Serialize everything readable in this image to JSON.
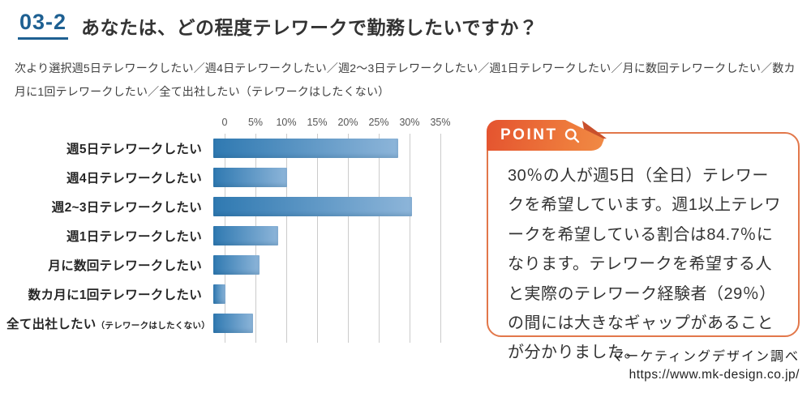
{
  "header": {
    "number": "03-2",
    "title": "あなたは、どの程度テレワークで勤務したいですか？"
  },
  "subtitle": "次より選択週5日テレワークしたい／週4日テレワークしたい／週2～3日テレワークしたい／週1日テレワークしたい／月に数回テレワークしたい／数カ月に1回テレワークしたい／全て出社したい（テレワークはしたくない）",
  "chart_data": {
    "type": "bar",
    "orientation": "horizontal",
    "title": "",
    "categories": [
      "週5日テレワークしたい",
      "週4日テレワークしたい",
      "週2~3日テレワークしたい",
      "週1日テレワークしたい",
      "月に数回テレワークしたい",
      "数カ月に1回テレワークしたい",
      "全て出社したい"
    ],
    "category_notes": [
      "",
      "",
      "",
      "",
      "",
      "",
      "（テレワークはしたくない）"
    ],
    "values": [
      30,
      12,
      32.2,
      10.5,
      7.5,
      2,
      6.5
    ],
    "unit": "%",
    "x_ticks": [
      "0",
      "5%",
      "10%",
      "15%",
      "20%",
      "25%",
      "30%",
      "35%"
    ],
    "xlim": [
      0,
      35
    ],
    "grid": true,
    "legend": false,
    "bar_gradient_left": "#2f79b1",
    "bar_gradient_right": "#8db5d9",
    "gridline_color": "#cbcbcb"
  },
  "point_box": {
    "tag_label": "POINT",
    "tag_icon": "magnifier-icon",
    "accent_color": "#e8683a",
    "text": "30％の人が週5日（全日）テレワークを希望しています。週1以上テレワークを希望している割合は84.7％になります。テレワークを希望する人と実際のテレワーク経験者（29％）の間には大きなギャップがあることが分かりました。"
  },
  "footer": {
    "source": "マーケティングデザイン調べ",
    "url": "https://www.mk-design.co.jp/"
  }
}
